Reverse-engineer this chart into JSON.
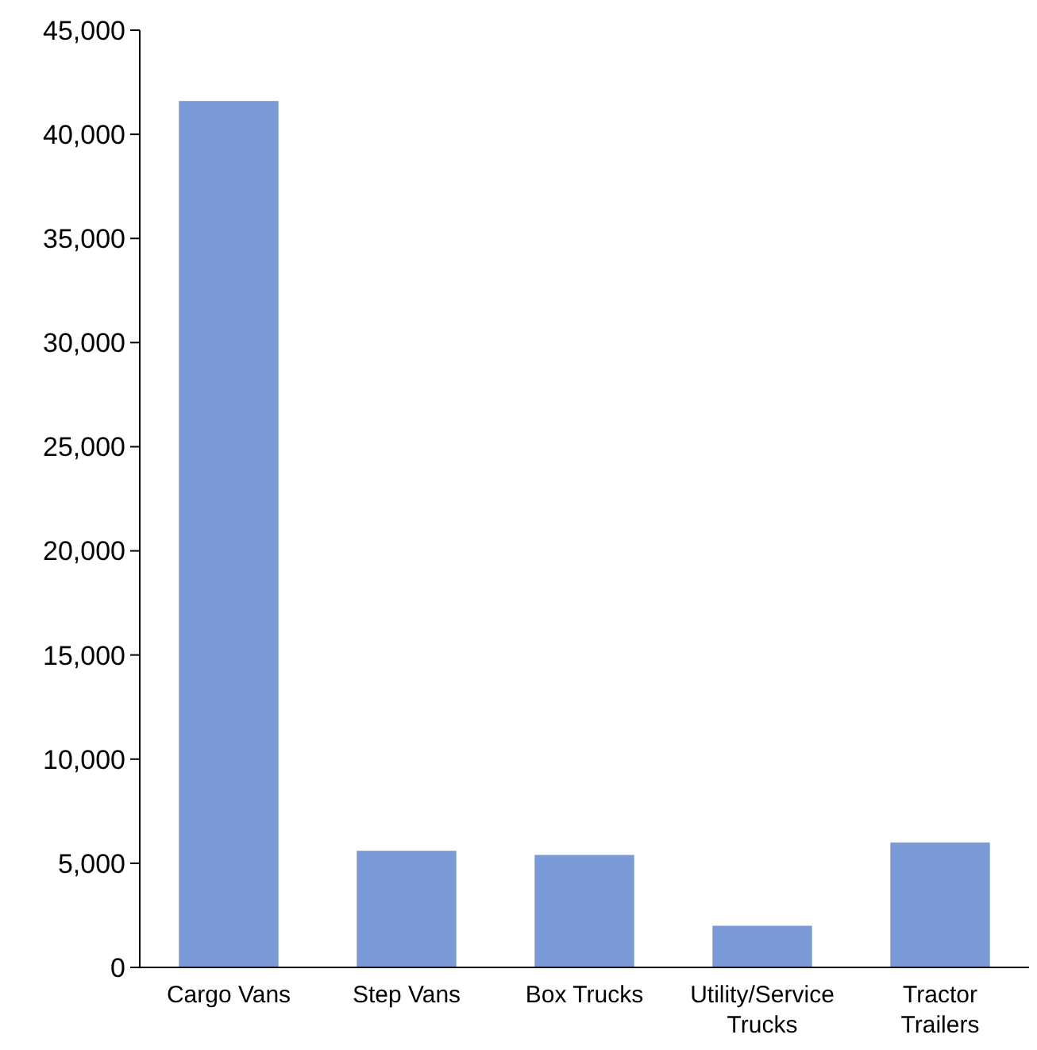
{
  "chart_data": {
    "type": "bar",
    "categories": [
      "Cargo Vans",
      "Step Vans",
      "Box Trucks",
      "Utility/Service Trucks",
      "Tractor Trailers"
    ],
    "values": [
      41600,
      5600,
      5400,
      2000,
      6000
    ],
    "color": "#7b9bd6",
    "ylim": [
      0,
      45000
    ],
    "yticks": [
      {
        "value": 0,
        "label": "0"
      },
      {
        "value": 5000,
        "label": "5,000"
      },
      {
        "value": 10000,
        "label": "10,000"
      },
      {
        "value": 15000,
        "label": "15,000"
      },
      {
        "value": 20000,
        "label": "20,000"
      },
      {
        "value": 25000,
        "label": "25,000"
      },
      {
        "value": 30000,
        "label": "30,000"
      },
      {
        "value": 35000,
        "label": "35,000"
      },
      {
        "value": 40000,
        "label": "40,000"
      },
      {
        "value": 45000,
        "label": "45,000"
      }
    ],
    "grid": false
  }
}
